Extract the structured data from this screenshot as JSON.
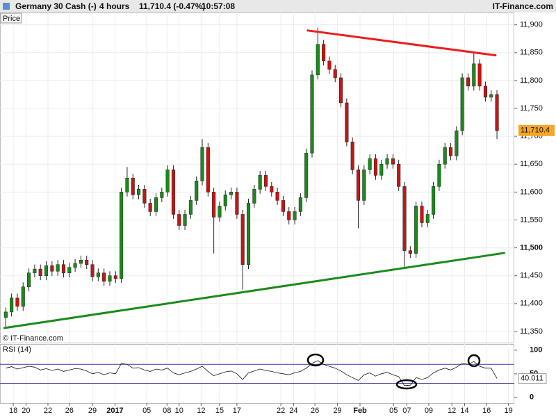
{
  "header": {
    "instrument": "Germany 30 Cash (-)",
    "interval": "4 hours",
    "quote": "11,710.4 (-0.47%)",
    "time": "10:57:08",
    "brand": "IT-Finance.com"
  },
  "chart_data": [
    {
      "type": "candlestick",
      "panel_label": "Price",
      "watermark": "© IT-Finance.com",
      "up_color": "#1a8a1a",
      "down_color": "#cc1111",
      "xlim": [
        -1,
        88
      ],
      "ylim": [
        11330,
        11922
      ],
      "yticks": [
        {
          "value": 11350,
          "label": "11,350"
        },
        {
          "value": 11400,
          "label": "11,400"
        },
        {
          "value": 11450,
          "label": "11,450"
        },
        {
          "value": 11500,
          "label": "11,500"
        },
        {
          "value": 11550,
          "label": "11,550"
        },
        {
          "value": 11600,
          "label": "11,600"
        },
        {
          "value": 11650,
          "label": "11,650"
        },
        {
          "value": 11700,
          "label": "11,700"
        },
        {
          "value": 11750,
          "label": "11,750"
        },
        {
          "value": 11800,
          "label": "11,800"
        },
        {
          "value": 11850,
          "label": "11,850"
        },
        {
          "value": 11900,
          "label": "11,900"
        }
      ],
      "bold_tick": 11500,
      "last_price": {
        "value": 11710.4,
        "label": "11,710.4"
      },
      "open": [
        11375,
        11385,
        11410,
        11395,
        11430,
        11455,
        11462,
        11450,
        11468,
        11458,
        11470,
        11455,
        11465,
        11472,
        11478,
        11470,
        11448,
        11455,
        11440,
        11450,
        11445,
        11600,
        11625,
        11595,
        11605,
        11580,
        11565,
        11590,
        11600,
        11640,
        11560,
        11540,
        11560,
        11585,
        11620,
        11680,
        11600,
        11555,
        11575,
        11595,
        11600,
        11560,
        11470,
        11580,
        11605,
        11630,
        11610,
        11600,
        11585,
        11565,
        11550,
        11565,
        11590,
        11670,
        11810,
        11865,
        11835,
        11820,
        11805,
        11760,
        11690,
        11640,
        11585,
        11640,
        11660,
        11630,
        11650,
        11660,
        11650,
        11610,
        11495,
        11490,
        11575,
        11545,
        11560,
        11610,
        11650,
        11680,
        11665,
        11710,
        11805,
        11790,
        11830,
        11790,
        11770,
        11775
      ],
      "high": [
        11393,
        11418,
        11418,
        11438,
        11463,
        11470,
        11470,
        11476,
        11476,
        11478,
        11478,
        11473,
        11480,
        11486,
        11486,
        11478,
        11463,
        11463,
        11458,
        11458,
        11608,
        11645,
        11633,
        11613,
        11613,
        11588,
        11598,
        11608,
        11648,
        11648,
        11568,
        11568,
        11593,
        11628,
        11695,
        11688,
        11608,
        11583,
        11603,
        11608,
        11608,
        11568,
        11588,
        11613,
        11638,
        11638,
        11618,
        11608,
        11593,
        11573,
        11573,
        11598,
        11678,
        11818,
        11895,
        11873,
        11843,
        11828,
        11813,
        11768,
        11698,
        11648,
        11648,
        11668,
        11668,
        11658,
        11668,
        11668,
        11658,
        11618,
        11503,
        11583,
        11583,
        11568,
        11618,
        11658,
        11688,
        11688,
        11718,
        11813,
        11813,
        11850,
        11838,
        11798,
        11783,
        11783
      ],
      "low": [
        11355,
        11377,
        11387,
        11387,
        11422,
        11447,
        11442,
        11442,
        11450,
        11450,
        11447,
        11447,
        11457,
        11464,
        11462,
        11440,
        11440,
        11432,
        11432,
        11437,
        11437,
        11592,
        11587,
        11587,
        11572,
        11557,
        11557,
        11582,
        11592,
        11552,
        11532,
        11532,
        11552,
        11577,
        11612,
        11592,
        11490,
        11547,
        11567,
        11587,
        11552,
        11425,
        11462,
        11572,
        11597,
        11602,
        11592,
        11577,
        11557,
        11542,
        11542,
        11557,
        11582,
        11662,
        11802,
        11827,
        11812,
        11797,
        11752,
        11682,
        11632,
        11535,
        11577,
        11632,
        11622,
        11622,
        11642,
        11642,
        11602,
        11465,
        11482,
        11482,
        11537,
        11537,
        11552,
        11602,
        11642,
        11657,
        11657,
        11702,
        11782,
        11782,
        11782,
        11762,
        11762,
        11695
      ],
      "close": [
        11385,
        11410,
        11395,
        11430,
        11455,
        11462,
        11450,
        11468,
        11458,
        11470,
        11455,
        11465,
        11472,
        11478,
        11470,
        11448,
        11455,
        11440,
        11450,
        11445,
        11600,
        11625,
        11595,
        11605,
        11580,
        11565,
        11590,
        11600,
        11640,
        11560,
        11540,
        11560,
        11585,
        11620,
        11680,
        11600,
        11555,
        11575,
        11595,
        11600,
        11560,
        11470,
        11580,
        11605,
        11630,
        11610,
        11600,
        11585,
        11565,
        11550,
        11565,
        11590,
        11670,
        11810,
        11865,
        11835,
        11820,
        11805,
        11760,
        11690,
        11640,
        11585,
        11640,
        11660,
        11630,
        11650,
        11660,
        11650,
        11610,
        11495,
        11490,
        11575,
        11545,
        11560,
        11610,
        11650,
        11680,
        11665,
        11710,
        11805,
        11790,
        11830,
        11790,
        11770,
        11775,
        11710
      ],
      "trendlines": [
        {
          "color": "#ee1c1c",
          "x": [
            52.1,
            84.9
          ],
          "y": [
            11890,
            11845
          ]
        },
        {
          "color": "#1c8a1c",
          "x": [
            -0.4,
            86.4
          ],
          "y": [
            11356,
            11491
          ]
        }
      ]
    },
    {
      "type": "line",
      "panel_label": "RSI (14)",
      "color": "#111111",
      "level_color": "#3a3aa0",
      "xlim": [
        -1,
        88
      ],
      "ylim": [
        -12,
        113
      ],
      "yticks": [
        0,
        50,
        100
      ],
      "levels": [
        30,
        70
      ],
      "last_value": 40.011,
      "xticks": [
        {
          "value": 1.3,
          "label": "18"
        },
        {
          "value": 3.5,
          "label": "20"
        },
        {
          "value": 7.3,
          "label": "22"
        },
        {
          "value": 11,
          "label": "26"
        },
        {
          "value": 15,
          "label": "29"
        },
        {
          "value": 18.9,
          "label": "2017"
        },
        {
          "value": 24.4,
          "label": "05"
        },
        {
          "value": 27.9,
          "label": "08"
        },
        {
          "value": 30,
          "label": "10"
        },
        {
          "value": 33.8,
          "label": "12"
        },
        {
          "value": 37,
          "label": "15"
        },
        {
          "value": 40,
          "label": "17"
        },
        {
          "value": 47.6,
          "label": "22"
        },
        {
          "value": 49.8,
          "label": "24"
        },
        {
          "value": 53.5,
          "label": "26"
        },
        {
          "value": 57.4,
          "label": "29"
        },
        {
          "value": 61.3,
          "label": "Feb"
        },
        {
          "value": 67.1,
          "label": "05"
        },
        {
          "value": 69.4,
          "label": "07"
        },
        {
          "value": 73.2,
          "label": "09"
        },
        {
          "value": 77.2,
          "label": "12"
        },
        {
          "value": 79.4,
          "label": "14"
        },
        {
          "value": 83.2,
          "label": "16"
        },
        {
          "value": 87,
          "label": "19"
        }
      ],
      "bold_xticks": [
        "2017",
        "Feb"
      ],
      "values": [
        62,
        65,
        60,
        63,
        66,
        64,
        58,
        61,
        57,
        60,
        55,
        58,
        61,
        60,
        56,
        50,
        53,
        48,
        52,
        50,
        72,
        70,
        62,
        63,
        58,
        55,
        60,
        58,
        62,
        52,
        48,
        52,
        55,
        60,
        66,
        55,
        46,
        50,
        54,
        56,
        50,
        38,
        52,
        56,
        60,
        57,
        55,
        52,
        50,
        48,
        52,
        55,
        62,
        72,
        78,
        70,
        66,
        62,
        56,
        48,
        42,
        36,
        48,
        52,
        45,
        50,
        53,
        48,
        44,
        25,
        26,
        42,
        38,
        42,
        52,
        58,
        62,
        58,
        64,
        72,
        70,
        76,
        66,
        62,
        62,
        40
      ]
    }
  ]
}
